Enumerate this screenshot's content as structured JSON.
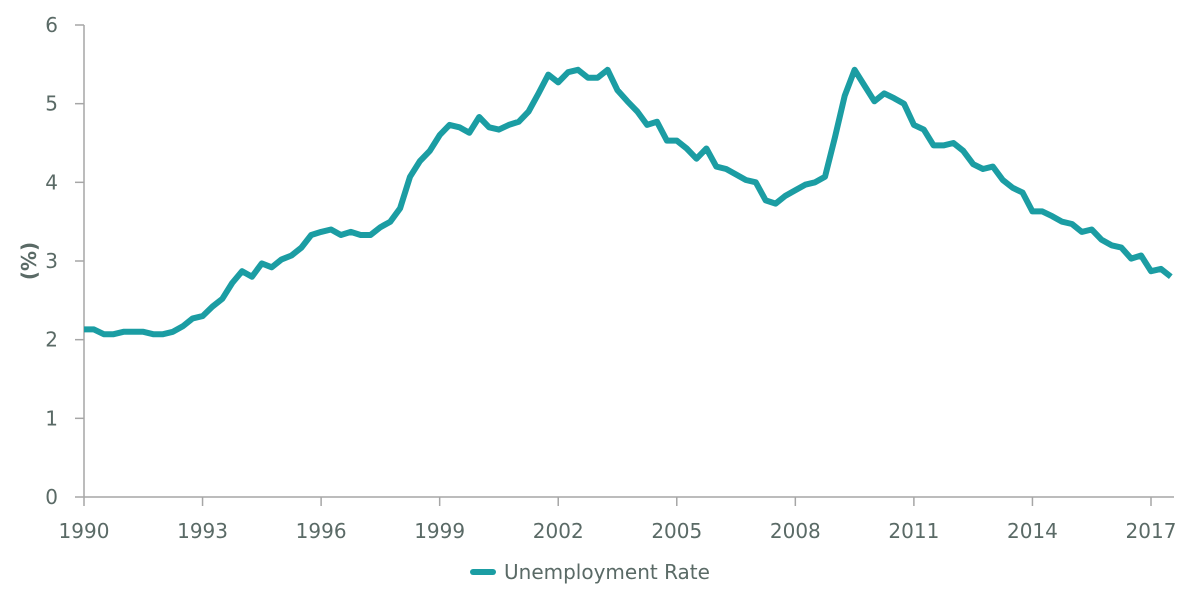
{
  "chart_data": {
    "type": "line",
    "title": "",
    "xlabel": "",
    "ylabel": "(%)",
    "ylim": [
      0,
      6
    ],
    "yticks": [
      0,
      1,
      2,
      3,
      4,
      5,
      6
    ],
    "xticks": [
      "1990",
      "1993",
      "1996",
      "1999",
      "2002",
      "2005",
      "2008",
      "2011",
      "2014",
      "2017"
    ],
    "x_start": "1990Q1",
    "x_frequency": "quarterly",
    "grid": false,
    "legend_position": "bottom-center",
    "series": [
      {
        "name": "Unemployment Rate",
        "color": "#1b9da3",
        "values": [
          2.13,
          2.13,
          2.07,
          2.07,
          2.1,
          2.1,
          2.1,
          2.07,
          2.07,
          2.1,
          2.17,
          2.27,
          2.3,
          2.42,
          2.52,
          2.72,
          2.87,
          2.8,
          2.97,
          2.92,
          3.02,
          3.07,
          3.17,
          3.33,
          3.37,
          3.4,
          3.33,
          3.37,
          3.33,
          3.33,
          3.43,
          3.5,
          3.67,
          4.07,
          4.27,
          4.4,
          4.6,
          4.73,
          4.7,
          4.63,
          4.83,
          4.7,
          4.67,
          4.73,
          4.77,
          4.9,
          5.13,
          5.37,
          5.27,
          5.4,
          5.43,
          5.33,
          5.33,
          5.43,
          5.17,
          5.03,
          4.9,
          4.73,
          4.77,
          4.53,
          4.53,
          4.43,
          4.3,
          4.43,
          4.2,
          4.17,
          4.1,
          4.03,
          4.0,
          3.77,
          3.73,
          3.83,
          3.9,
          3.97,
          4.0,
          4.07,
          4.57,
          5.1,
          5.43,
          5.23,
          5.03,
          5.13,
          5.07,
          5.0,
          4.73,
          4.67,
          4.47,
          4.47,
          4.5,
          4.4,
          4.23,
          4.17,
          4.2,
          4.03,
          3.93,
          3.87,
          3.63,
          3.63,
          3.57,
          3.5,
          3.47,
          3.37,
          3.4,
          3.27,
          3.2,
          3.17,
          3.03,
          3.07,
          2.87,
          2.9,
          2.8
        ]
      }
    ]
  },
  "legend": {
    "items": [
      {
        "label": "Unemployment Rate",
        "color": "#1b9da3"
      }
    ]
  },
  "axis": {
    "y_title": "(%)"
  }
}
